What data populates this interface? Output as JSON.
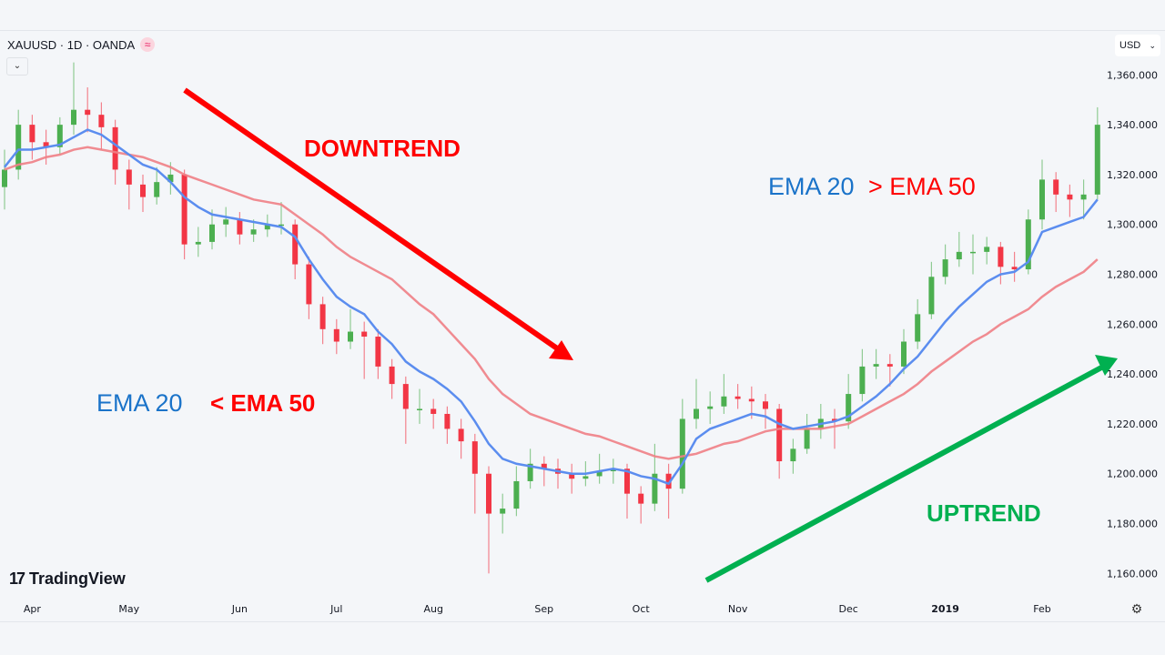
{
  "header": {
    "symbol_legend": "XAUUSD · 1D · OANDA",
    "legend_icon": "approx-equal-icon",
    "currency": "USD"
  },
  "branding": {
    "logo_text": "TradingView"
  },
  "annotations": {
    "downtrend": "DOWNTREND",
    "uptrend": "UPTREND",
    "below_ema20": "EMA 20",
    "below_ema50": "< EMA 50",
    "above_ema20": "EMA 20",
    "above_ema50": "> EMA 50"
  },
  "colors": {
    "up": "#4caf50",
    "down": "#f23645",
    "ema20": "#5b8def",
    "ema50": "#f07f85",
    "downtrend_arrow": "#ff0000",
    "uptrend_arrow": "#00b050",
    "ema20_text": "#1a73c9",
    "ema50_text": "#ff0000"
  },
  "chart_data": {
    "type": "candlestick",
    "title": "",
    "ylim": [
      1151,
      1378
    ],
    "y_ticks": [
      "1,360.000",
      "1,340.000",
      "1,320.000",
      "1,300.000",
      "1,280.000",
      "1,260.000",
      "1,240.000",
      "1,220.000",
      "1,200.000",
      "1,180.000",
      "1,160.000"
    ],
    "y_tick_values": [
      1360,
      1340,
      1320,
      1300,
      1280,
      1260,
      1240,
      1220,
      1200,
      1180,
      1160
    ],
    "x_ticks": [
      "Apr",
      "May",
      "Jun",
      "Jul",
      "Aug",
      "Sep",
      "Oct",
      "Nov",
      "Dec",
      "2019",
      "Feb"
    ],
    "x_tick_candle_index": [
      2,
      9,
      17,
      24,
      31,
      39,
      46,
      53,
      61,
      68,
      75
    ],
    "grid": false,
    "ohlc": [
      [
        1315,
        1330,
        1306,
        1322
      ],
      [
        1322,
        1346,
        1318,
        1340
      ],
      [
        1340,
        1344,
        1326,
        1333
      ],
      [
        1333,
        1338,
        1324,
        1331
      ],
      [
        1331,
        1343,
        1328,
        1340
      ],
      [
        1340,
        1365,
        1336,
        1346
      ],
      [
        1346,
        1355,
        1337,
        1344
      ],
      [
        1344,
        1349,
        1330,
        1339
      ],
      [
        1339,
        1342,
        1316,
        1322
      ],
      [
        1322,
        1326,
        1306,
        1316
      ],
      [
        1316,
        1320,
        1305,
        1311
      ],
      [
        1311,
        1323,
        1308,
        1317
      ],
      [
        1317,
        1325,
        1312,
        1320
      ],
      [
        1320,
        1322,
        1286,
        1292
      ],
      [
        1292,
        1299,
        1287,
        1293
      ],
      [
        1293,
        1306,
        1290,
        1300
      ],
      [
        1300,
        1307,
        1295,
        1302
      ],
      [
        1302,
        1305,
        1292,
        1296
      ],
      [
        1296,
        1302,
        1293,
        1298
      ],
      [
        1298,
        1304,
        1295,
        1300
      ],
      [
        1300,
        1309,
        1296,
        1300
      ],
      [
        1300,
        1302,
        1278,
        1284
      ],
      [
        1284,
        1287,
        1262,
        1268
      ],
      [
        1268,
        1271,
        1252,
        1258
      ],
      [
        1258,
        1262,
        1248,
        1253
      ],
      [
        1253,
        1266,
        1250,
        1257
      ],
      [
        1257,
        1261,
        1238,
        1255
      ],
      [
        1255,
        1258,
        1238,
        1243
      ],
      [
        1243,
        1246,
        1230,
        1236
      ],
      [
        1236,
        1239,
        1212,
        1226
      ],
      [
        1226,
        1234,
        1220,
        1226
      ],
      [
        1226,
        1230,
        1218,
        1224
      ],
      [
        1224,
        1227,
        1212,
        1218
      ],
      [
        1218,
        1222,
        1206,
        1213
      ],
      [
        1213,
        1216,
        1184,
        1200
      ],
      [
        1200,
        1203,
        1160,
        1184
      ],
      [
        1184,
        1192,
        1176,
        1186
      ],
      [
        1186,
        1203,
        1183,
        1197
      ],
      [
        1197,
        1210,
        1194,
        1204
      ],
      [
        1204,
        1207,
        1195,
        1202
      ],
      [
        1202,
        1206,
        1194,
        1200
      ],
      [
        1200,
        1204,
        1192,
        1198
      ],
      [
        1198,
        1205,
        1195,
        1199
      ],
      [
        1199,
        1208,
        1196,
        1201
      ],
      [
        1201,
        1206,
        1196,
        1202
      ],
      [
        1202,
        1204,
        1182,
        1192
      ],
      [
        1192,
        1195,
        1180,
        1188
      ],
      [
        1188,
        1212,
        1185,
        1200
      ],
      [
        1200,
        1204,
        1182,
        1194
      ],
      [
        1194,
        1230,
        1192,
        1222
      ],
      [
        1222,
        1238,
        1218,
        1226
      ],
      [
        1226,
        1233,
        1220,
        1227
      ],
      [
        1227,
        1240,
        1224,
        1231
      ],
      [
        1231,
        1236,
        1226,
        1230
      ],
      [
        1230,
        1235,
        1222,
        1229
      ],
      [
        1229,
        1232,
        1218,
        1226
      ],
      [
        1226,
        1228,
        1198,
        1205
      ],
      [
        1205,
        1214,
        1200,
        1210
      ],
      [
        1210,
        1224,
        1208,
        1218
      ],
      [
        1218,
        1228,
        1214,
        1222
      ],
      [
        1222,
        1226,
        1210,
        1221
      ],
      [
        1221,
        1240,
        1218,
        1232
      ],
      [
        1232,
        1250,
        1229,
        1243
      ],
      [
        1243,
        1250,
        1238,
        1244
      ],
      [
        1244,
        1248,
        1235,
        1243
      ],
      [
        1243,
        1258,
        1240,
        1253
      ],
      [
        1253,
        1270,
        1250,
        1264
      ],
      [
        1264,
        1285,
        1262,
        1279
      ],
      [
        1279,
        1292,
        1276,
        1286
      ],
      [
        1286,
        1297,
        1283,
        1289
      ],
      [
        1289,
        1296,
        1280,
        1289
      ],
      [
        1289,
        1295,
        1284,
        1291
      ],
      [
        1291,
        1293,
        1276,
        1283
      ],
      [
        1283,
        1289,
        1277,
        1282
      ],
      [
        1282,
        1306,
        1280,
        1302
      ],
      [
        1302,
        1326,
        1298,
        1318
      ],
      [
        1318,
        1321,
        1305,
        1312
      ],
      [
        1312,
        1316,
        1303,
        1310
      ],
      [
        1310,
        1318,
        1302,
        1312
      ],
      [
        1312,
        1347,
        1310,
        1340
      ]
    ],
    "series": [
      {
        "name": "EMA 20",
        "values": [
          1323,
          1330,
          1330,
          1331,
          1332,
          1335,
          1338,
          1336,
          1332,
          1328,
          1324,
          1322,
          1317,
          1311,
          1307,
          1304,
          1303,
          1302,
          1301,
          1300,
          1299,
          1295,
          1286,
          1278,
          1271,
          1267,
          1264,
          1257,
          1252,
          1245,
          1241,
          1238,
          1234,
          1229,
          1221,
          1212,
          1206,
          1204,
          1203,
          1202,
          1201,
          1200,
          1200,
          1201,
          1202,
          1201,
          1199,
          1198,
          1196,
          1204,
          1214,
          1218,
          1220,
          1222,
          1224,
          1223,
          1220,
          1218,
          1219,
          1220,
          1221,
          1223,
          1227,
          1231,
          1236,
          1242,
          1247,
          1254,
          1261,
          1267,
          1272,
          1277,
          1280,
          1281,
          1285,
          1297,
          1299,
          1301,
          1303,
          1310
        ]
      },
      {
        "name": "EMA 50",
        "values": [
          1322,
          1324,
          1325,
          1327,
          1328,
          1330,
          1331,
          1330,
          1329,
          1328,
          1327,
          1325,
          1323,
          1320,
          1318,
          1316,
          1314,
          1312,
          1310,
          1309,
          1308,
          1304,
          1300,
          1296,
          1291,
          1287,
          1284,
          1281,
          1278,
          1273,
          1268,
          1264,
          1258,
          1252,
          1246,
          1238,
          1232,
          1228,
          1224,
          1222,
          1220,
          1218,
          1216,
          1215,
          1213,
          1211,
          1209,
          1207,
          1206,
          1207,
          1208,
          1210,
          1212,
          1213,
          1215,
          1217,
          1218,
          1218,
          1218,
          1218,
          1219,
          1220,
          1223,
          1226,
          1229,
          1232,
          1236,
          1241,
          1245,
          1249,
          1253,
          1256,
          1260,
          1263,
          1266,
          1271,
          1275,
          1278,
          1281,
          1286
        ]
      }
    ]
  }
}
